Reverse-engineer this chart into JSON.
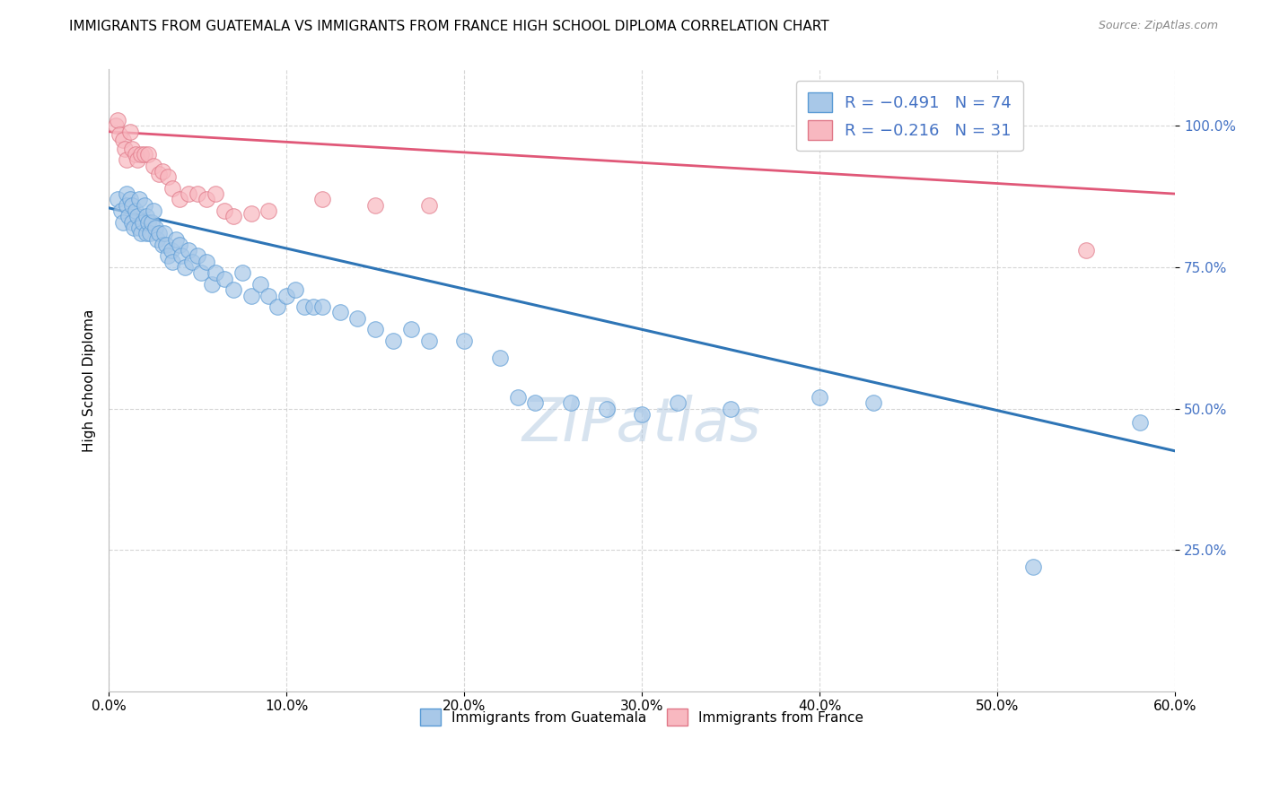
{
  "title": "IMMIGRANTS FROM GUATEMALA VS IMMIGRANTS FROM FRANCE HIGH SCHOOL DIPLOMA CORRELATION CHART",
  "source": "Source: ZipAtlas.com",
  "ylabel": "High School Diploma",
  "xlim": [
    0.0,
    0.6
  ],
  "ylim": [
    0.0,
    1.1
  ],
  "xtick_values": [
    0.0,
    0.1,
    0.2,
    0.3,
    0.4,
    0.5,
    0.6
  ],
  "ytick_values": [
    0.25,
    0.5,
    0.75,
    1.0
  ],
  "watermark": "ZIPatlas",
  "blue_scatter_x": [
    0.005,
    0.007,
    0.008,
    0.01,
    0.01,
    0.011,
    0.012,
    0.013,
    0.013,
    0.014,
    0.015,
    0.016,
    0.017,
    0.017,
    0.018,
    0.019,
    0.02,
    0.021,
    0.021,
    0.022,
    0.023,
    0.024,
    0.025,
    0.026,
    0.027,
    0.028,
    0.03,
    0.031,
    0.032,
    0.033,
    0.035,
    0.036,
    0.038,
    0.04,
    0.041,
    0.043,
    0.045,
    0.047,
    0.05,
    0.052,
    0.055,
    0.058,
    0.06,
    0.065,
    0.07,
    0.075,
    0.08,
    0.085,
    0.09,
    0.095,
    0.1,
    0.105,
    0.11,
    0.115,
    0.12,
    0.13,
    0.14,
    0.15,
    0.16,
    0.17,
    0.18,
    0.2,
    0.22,
    0.23,
    0.24,
    0.26,
    0.28,
    0.3,
    0.32,
    0.35,
    0.4,
    0.43,
    0.52,
    0.58
  ],
  "blue_scatter_y": [
    0.87,
    0.85,
    0.83,
    0.88,
    0.86,
    0.84,
    0.87,
    0.86,
    0.83,
    0.82,
    0.85,
    0.84,
    0.87,
    0.82,
    0.81,
    0.83,
    0.86,
    0.84,
    0.81,
    0.83,
    0.81,
    0.83,
    0.85,
    0.82,
    0.8,
    0.81,
    0.79,
    0.81,
    0.79,
    0.77,
    0.78,
    0.76,
    0.8,
    0.79,
    0.77,
    0.75,
    0.78,
    0.76,
    0.77,
    0.74,
    0.76,
    0.72,
    0.74,
    0.73,
    0.71,
    0.74,
    0.7,
    0.72,
    0.7,
    0.68,
    0.7,
    0.71,
    0.68,
    0.68,
    0.68,
    0.67,
    0.66,
    0.64,
    0.62,
    0.64,
    0.62,
    0.62,
    0.59,
    0.52,
    0.51,
    0.51,
    0.5,
    0.49,
    0.51,
    0.5,
    0.52,
    0.51,
    0.22,
    0.475
  ],
  "pink_scatter_x": [
    0.004,
    0.005,
    0.006,
    0.008,
    0.009,
    0.01,
    0.012,
    0.013,
    0.015,
    0.016,
    0.018,
    0.02,
    0.022,
    0.025,
    0.028,
    0.03,
    0.033,
    0.036,
    0.04,
    0.045,
    0.05,
    0.055,
    0.06,
    0.065,
    0.07,
    0.08,
    0.09,
    0.12,
    0.15,
    0.18,
    0.55
  ],
  "pink_scatter_y": [
    1.0,
    1.01,
    0.985,
    0.975,
    0.96,
    0.94,
    0.99,
    0.96,
    0.95,
    0.94,
    0.95,
    0.95,
    0.95,
    0.93,
    0.915,
    0.92,
    0.91,
    0.89,
    0.87,
    0.88,
    0.88,
    0.87,
    0.88,
    0.85,
    0.84,
    0.845,
    0.85,
    0.87,
    0.86,
    0.86,
    0.78
  ],
  "blue_line_x": [
    0.0,
    0.6
  ],
  "blue_line_y": [
    0.855,
    0.425
  ],
  "pink_line_x": [
    0.0,
    0.6
  ],
  "pink_line_y": [
    0.99,
    0.88
  ],
  "blue_color": "#a8c8e8",
  "blue_edge_color": "#5b9bd5",
  "pink_color": "#f8b8c0",
  "pink_edge_color": "#e07888",
  "blue_line_color": "#2e75b6",
  "pink_line_color": "#e05878",
  "background_color": "#ffffff",
  "grid_color": "#cccccc",
  "title_fontsize": 11,
  "axis_label_fontsize": 11,
  "tick_fontsize": 11,
  "legend_fontsize": 13,
  "watermark_fontsize": 48
}
